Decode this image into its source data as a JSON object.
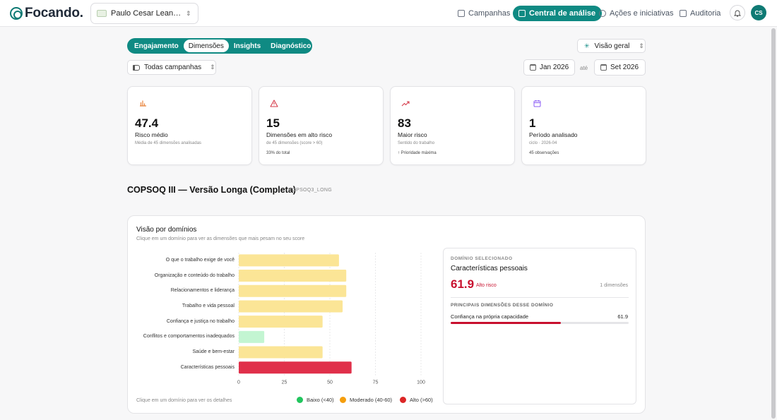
{
  "brand": {
    "name": "Focando.",
    "color": "#0f7a74"
  },
  "org_selector": {
    "value": "Paulo Cesar Leandre..."
  },
  "nav": {
    "items": [
      {
        "label": "Campanhas",
        "icon": "clipboard-icon",
        "active": false
      },
      {
        "label": "Central de análise",
        "icon": "report-icon",
        "active": true
      },
      {
        "label": "Ações e iniciativas",
        "icon": "plus-circle-icon",
        "active": false
      },
      {
        "label": "Auditoria",
        "icon": "folder-icon",
        "active": false
      }
    ],
    "avatar_initials": "CS"
  },
  "tabs": [
    {
      "label": "Engajamento",
      "active": false
    },
    {
      "label": "Dimensões",
      "active": true
    },
    {
      "label": "Insights",
      "active": false
    },
    {
      "label": "Diagnóstico",
      "active": false
    }
  ],
  "view_select": {
    "value": "Visão geral"
  },
  "campaign_select": {
    "value": "Todas campanhas"
  },
  "date_range": {
    "from": "Jan 2026",
    "separator": "até",
    "to": "Set 2026"
  },
  "kpis": [
    {
      "value": "47.4",
      "label": "Risco médio",
      "sub": "Média de 45 dimensões analisadas",
      "extra": "",
      "icon": "bar-chart-icon",
      "icon_color": "#e8833a",
      "icon_bg": "#fdf0e6"
    },
    {
      "value": "15",
      "label": "Dimensões em alto risco",
      "sub": "de 45 dimensões (score > 60)",
      "extra": "33% do total",
      "icon": "warning-icon",
      "icon_color": "#d63b4a",
      "icon_bg": "#fdecee"
    },
    {
      "value": "83",
      "label": "Maior risco",
      "sub": "Sentido do trabalho",
      "extra": "↑ Prioridade máxima",
      "icon": "trend-up-icon",
      "icon_color": "#d63b4a",
      "icon_bg": "#fdecee"
    },
    {
      "value": "1",
      "label": "Período analisado",
      "sub": "ciclo · 2026-04",
      "extra": "45 observações",
      "icon": "calendar-icon",
      "icon_color": "#8b5cf6",
      "icon_bg": "#f1ecfe"
    }
  ],
  "section": {
    "title": "COPSOQ III — Versão Longa (Completa)",
    "code": "COPSOQ3_LONG"
  },
  "domains_panel": {
    "title": "Visão por domínios",
    "subtitle": "Clique em um domínio para ver as dimensões que mais pesam no seu score",
    "footer_note": "Clique em um domínio para ver os detalhes",
    "legend": [
      {
        "label": "Baixo (<40)",
        "color": "#22c55e"
      },
      {
        "label": "Moderado (40-60)",
        "color": "#f59e0b"
      },
      {
        "label": "Alto (>60)",
        "color": "#dc2626"
      }
    ]
  },
  "chart_data": {
    "type": "bar",
    "orientation": "horizontal",
    "categories": [
      "O que o trabalho exige de você",
      "Organização e conteúdo do trabalho",
      "Relacionamentos e liderança",
      "Trabalho e vida pessoal",
      "Confiança e justiça no trabalho",
      "Conflitos e comportamentos inadequados",
      "Saúde e bem-estar",
      "Características pessoais"
    ],
    "values": [
      55,
      59,
      59,
      57,
      46,
      14,
      46,
      61.9
    ],
    "bar_colors": [
      "#fbe596",
      "#fbe596",
      "#fbe596",
      "#fbe596",
      "#fbe596",
      "#c3f5d2",
      "#fbe596",
      "#e0304a"
    ],
    "xlim": [
      0,
      100
    ],
    "xticks": [
      0,
      25,
      50,
      75,
      100
    ],
    "grid": true
  },
  "detail": {
    "caption": "DOMÍNIO SELECIONADO",
    "name": "Características pessoais",
    "score": "61.9",
    "risk_label": "Alto risco",
    "count": "1 dimensões",
    "top_caption": "PRINCIPAIS DIMENSÕES DESSE DOMÍNIO",
    "dimension": {
      "name": "Confiança na própria capacidade",
      "value": "61.9",
      "fraction": 0.619
    }
  }
}
